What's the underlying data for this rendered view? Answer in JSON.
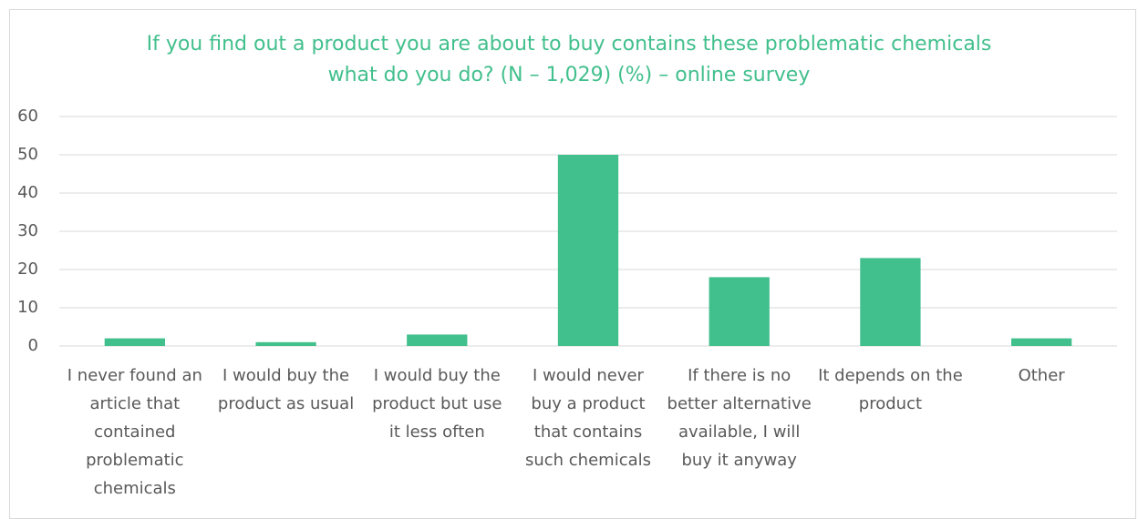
{
  "chart_data": {
    "type": "bar",
    "title": [
      "If you find out a product you are about to buy contains these problematic chemicals",
      "what do you do? (N – 1,029) (%) – online survey"
    ],
    "categories": [
      "I never found an article that contained problematic chemicals",
      "I would buy the product as usual",
      "I would buy the product but use it less often",
      "I would never buy a product that contains such chemicals",
      "If there is no better alternative available, I will buy it anyway",
      "It depends on the product",
      "Other"
    ],
    "values": [
      2,
      1,
      3,
      50,
      18,
      23,
      2
    ],
    "color": "#41bf8c",
    "ylim": [
      0,
      60
    ],
    "yticks": [
      0,
      10,
      20,
      30,
      40,
      50,
      60
    ],
    "grid": true
  }
}
